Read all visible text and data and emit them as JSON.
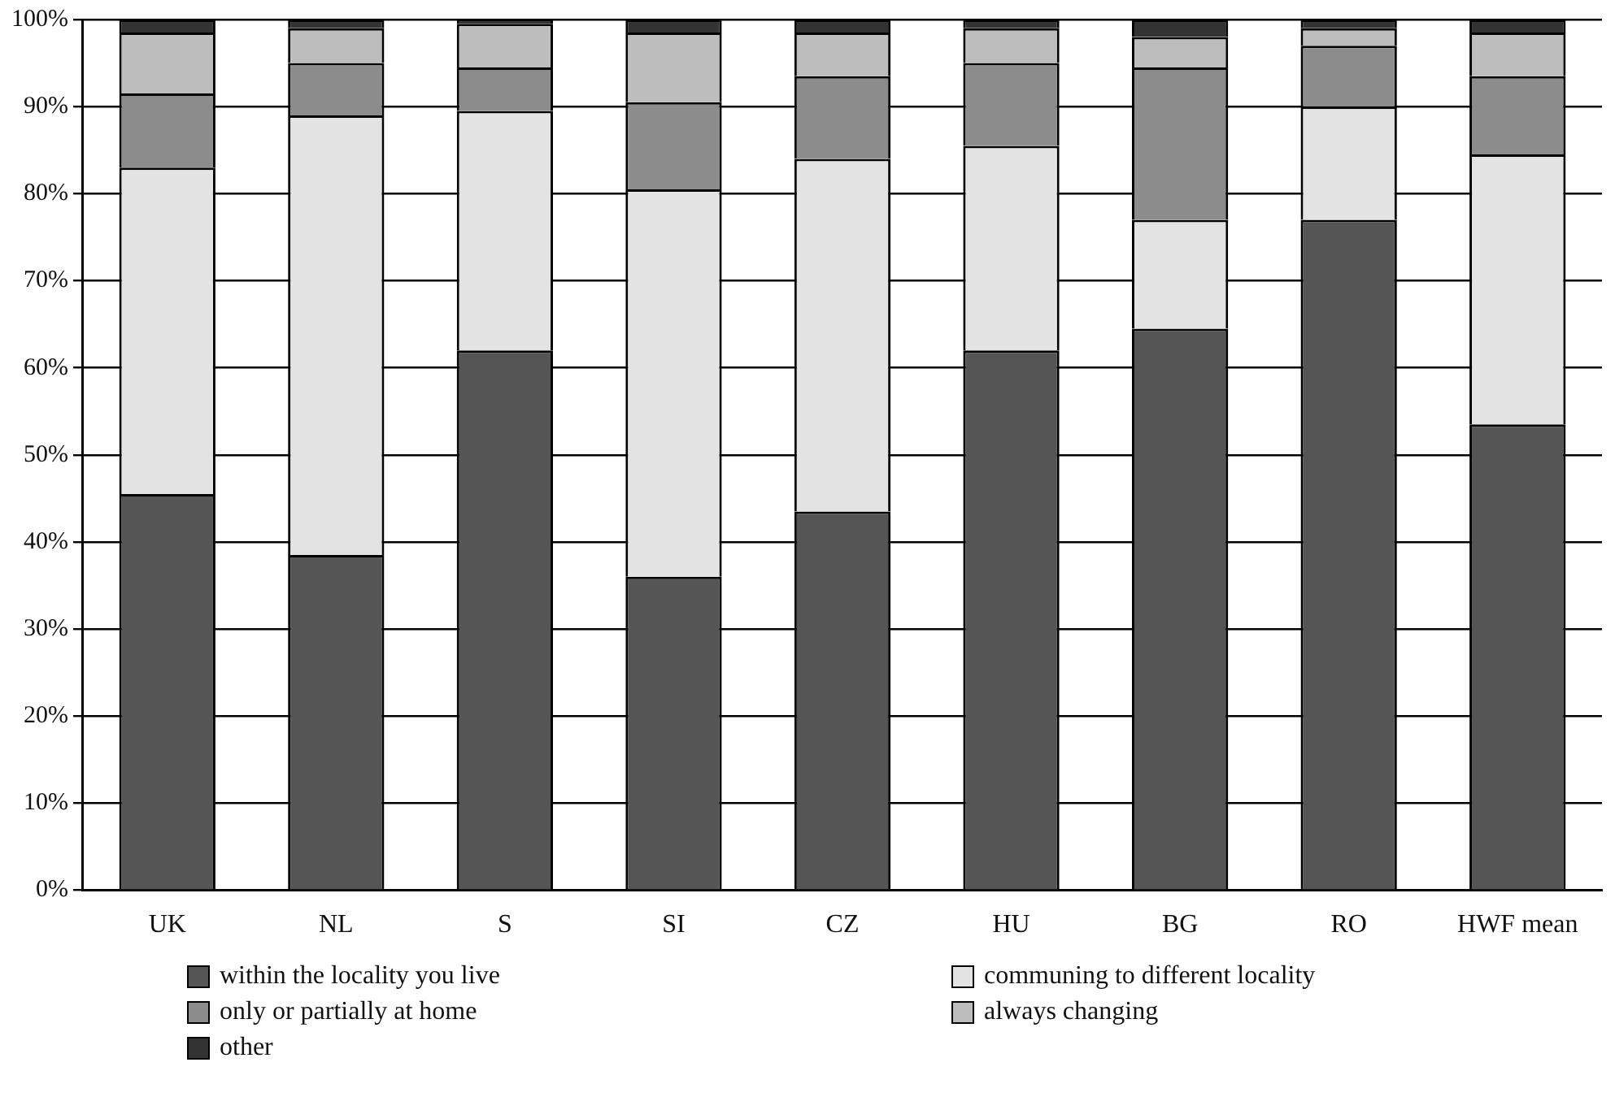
{
  "chart_data": {
    "type": "bar",
    "stacked": true,
    "categories": [
      "UK",
      "NL",
      "S",
      "SI",
      "CZ",
      "HU",
      "BG",
      "RO",
      "HWF mean"
    ],
    "series": [
      {
        "name": "within the locality you live",
        "color": "#555555",
        "values": [
          45.5,
          38.5,
          62,
          36,
          43.5,
          62,
          64.5,
          77,
          53.5
        ]
      },
      {
        "name": "communing to different locality",
        "color": "#e3e3e3",
        "values": [
          37.5,
          50.5,
          27.5,
          44.5,
          40.5,
          23.5,
          12.5,
          13,
          31
        ]
      },
      {
        "name": "only or partially at home",
        "color": "#8c8c8c",
        "values": [
          8.5,
          6,
          5,
          10,
          9.5,
          9.5,
          17.5,
          7,
          9
        ]
      },
      {
        "name": "always changing",
        "color": "#bdbdbd",
        "values": [
          7,
          4,
          5,
          8,
          5,
          4,
          3.5,
          2,
          5
        ]
      },
      {
        "name": "other",
        "color": "#333333",
        "values": [
          1.5,
          1,
          0.5,
          1.5,
          1.5,
          1,
          2,
          1,
          1.5
        ]
      }
    ],
    "ylim": [
      0,
      100
    ],
    "yticks": [
      {
        "value": 0,
        "label": "0%"
      },
      {
        "value": 10,
        "label": "10%"
      },
      {
        "value": 20,
        "label": "20%"
      },
      {
        "value": 30,
        "label": "30%"
      },
      {
        "value": 40,
        "label": "40%"
      },
      {
        "value": 50,
        "label": "50%"
      },
      {
        "value": 60,
        "label": "60%"
      },
      {
        "value": 70,
        "label": "70%"
      },
      {
        "value": 80,
        "label": "80%"
      },
      {
        "value": 90,
        "label": "90%"
      },
      {
        "value": 100,
        "label": "100%"
      }
    ],
    "grid": "y",
    "legend": "bottom"
  }
}
